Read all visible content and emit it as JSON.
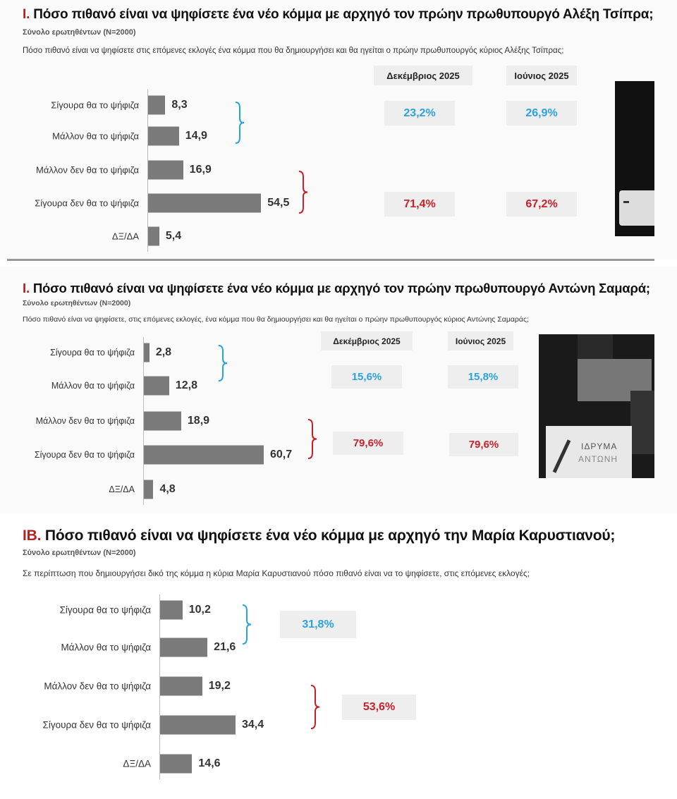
{
  "colors": {
    "bar": "#7a7a7a",
    "positive": "#2aa3dc",
    "negative": "#c8202a",
    "title_prefix": "#b22222"
  },
  "chart_data": [
    {
      "type": "bar",
      "title_prefix": "I.",
      "title": "Πόσο πιθανό είναι να ψηφίσετε ένα νέο κόμμα με αρχηγό τον πρώην πρωθυπουργό Αλέξη Τσίπρα;",
      "subtitle": "Σύνολο ερωτηθέντων (N=2000)",
      "question": "Πόσο πιθανό είναι να ψηφίσετε στις επόμενες εκλογές ένα κόμμα που θα δημιουργήσει και θα ηγείται ο πρώην πρωθυπουργός κύριος Αλέξης Τσίπρας;",
      "categories": [
        "Σίγουρα θα το ψήφιζα",
        "Μάλλον θα το ψήφιζα",
        "Μάλλον δεν θα το ψήφιζα",
        "Σίγουρα δεν θα το ψήφιζα",
        "ΔΞ/ΔΑ"
      ],
      "values": [
        8.3,
        14.9,
        16.9,
        54.5,
        5.4
      ],
      "value_labels": [
        "8,3",
        "14,9",
        "16,9",
        "54,5",
        "5,4"
      ],
      "summary_headers": [
        "Δεκέμβριος 2025",
        "Ιούνιος 2025"
      ],
      "summary_positive": [
        "23,2%",
        "26,9%"
      ],
      "summary_negative": [
        "71,4%",
        "67,2%"
      ]
    },
    {
      "type": "bar",
      "title_prefix": "I.",
      "title": "Πόσο πιθανό είναι να ψηφίσετε ένα νέο κόμμα με αρχηγό τον πρώην πρωθυπουργό Αντώνη Σαμαρά;",
      "subtitle": "Σύνολο ερωτηθέντων (N=2000)",
      "question": "Πόσο πιθανό είναι να ψηφίσετε, στις επόμενες εκλογές, ένα κόμμα που θα δημιουργήσει και θα ηγείται ο πρώην πρωθυπουργός κύριος Αντώνης Σαμαράς;",
      "categories": [
        "Σίγουρα θα το ψήφιζα",
        "Μάλλον θα το ψήφιζα",
        "Μάλλον δεν θα το ψήφιζα",
        "Σίγουρα δεν θα το ψήφιζα",
        "ΔΞ/ΔΑ"
      ],
      "values": [
        2.8,
        12.8,
        18.9,
        60.7,
        4.8
      ],
      "value_labels": [
        "2,8",
        "12,8",
        "18,9",
        "60,7",
        "4,8"
      ],
      "summary_headers": [
        "Δεκέμβριος 2025",
        "Ιούνιος 2025"
      ],
      "summary_positive": [
        "15,6%",
        "15,8%"
      ],
      "summary_negative": [
        "79,6%",
        "79,6%"
      ],
      "photo_text": [
        "ΙΔΡΥΜΑ",
        "ΑΝΤΩΝΗ"
      ]
    },
    {
      "type": "bar",
      "title_prefix": "ΙΒ.",
      "title": "Πόσο πιθανό είναι να ψηφίσετε ένα νέο κόμμα με αρχηγό την Μαρία Καρυστιανού;",
      "subtitle": "Σύνολο ερωτηθέντων (N=2000)",
      "question": "Σε περίπτωση που δημιουργήσει δικό της κόμμα η κύρια Μαρία Καρυστιανού πόσο πιθανό είναι να το ψηφίσετε, στις επόμενες εκλογές;",
      "categories": [
        "Σίγουρα θα το ψήφιζα",
        "Μάλλον θα το ψήφιζα",
        "Μάλλον δεν θα το ψήφιζα",
        "Σίγουρα δεν θα το ψήφιζα",
        "ΔΞ/ΔΑ"
      ],
      "values": [
        10.2,
        21.6,
        19.2,
        34.4,
        14.6
      ],
      "value_labels": [
        "10,2",
        "21,6",
        "19,2",
        "34,4",
        "14,6"
      ],
      "summary_positive": [
        "31,8%"
      ],
      "summary_negative": [
        "53,6%"
      ]
    }
  ]
}
